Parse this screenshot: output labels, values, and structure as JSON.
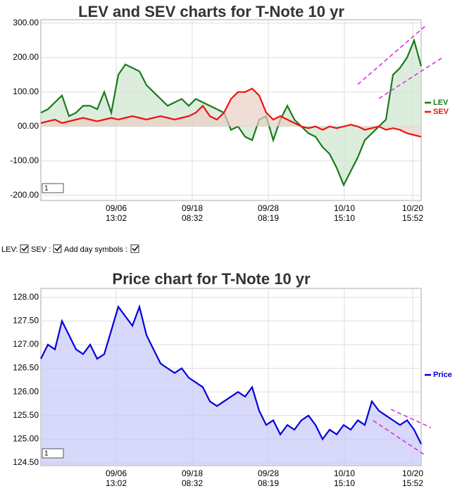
{
  "chart_data": [
    {
      "type": "area",
      "title": "LEV and SEV charts for T-Note 10 yr",
      "x": [
        0,
        1,
        2,
        3,
        4,
        5,
        6,
        7,
        8,
        9,
        10,
        11,
        12,
        13,
        14,
        15,
        16,
        17,
        18,
        19,
        20,
        21,
        22,
        23,
        24,
        25,
        26,
        27,
        28,
        29,
        30,
        31,
        32,
        33,
        34,
        35,
        36,
        37,
        38,
        39,
        40,
        41,
        42,
        43,
        44,
        45,
        46,
        47,
        48,
        49,
        50,
        51,
        52,
        53,
        54
      ],
      "series": [
        {
          "name": "LEV",
          "color": "#1a7a1a",
          "fill": "#cfe6cf",
          "values": [
            40,
            50,
            70,
            90,
            30,
            40,
            60,
            60,
            50,
            100,
            40,
            150,
            180,
            170,
            160,
            120,
            100,
            80,
            60,
            70,
            80,
            60,
            80,
            70,
            60,
            50,
            40,
            -10,
            0,
            -30,
            -40,
            20,
            30,
            -40,
            20,
            60,
            20,
            0,
            -20,
            -30,
            -60,
            -80,
            -120,
            -170,
            -130,
            -90,
            -40,
            -20,
            0,
            20,
            150,
            170,
            200,
            250,
            175
          ]
        },
        {
          "name": "SEV",
          "color": "#ee1111",
          "fill": "#e8cfc4",
          "values": [
            10,
            15,
            20,
            10,
            15,
            20,
            25,
            20,
            15,
            20,
            25,
            20,
            25,
            30,
            25,
            20,
            25,
            30,
            25,
            20,
            25,
            30,
            40,
            60,
            30,
            20,
            40,
            80,
            100,
            100,
            110,
            90,
            40,
            20,
            30,
            20,
            10,
            0,
            -5,
            0,
            -10,
            0,
            -5,
            0,
            5,
            0,
            -10,
            -5,
            0,
            -10,
            -5,
            -10,
            -20,
            -25,
            -30
          ]
        }
      ],
      "xlim": [
        0,
        54
      ],
      "xticks": [
        {
          "value": 10.7,
          "label": "09/06 13:02"
        },
        {
          "value": 21.5,
          "label": "09/18 08:32"
        },
        {
          "value": 32.3,
          "label": "09/28 08:19"
        },
        {
          "value": 43.1,
          "label": "10/10 15:10"
        },
        {
          "value": 52.8,
          "label": "10/20 15:52"
        }
      ],
      "ylim": [
        -215,
        310
      ],
      "yticks": [
        {
          "value": -200,
          "label": "-200.00"
        },
        {
          "value": -100,
          "label": "-100.00"
        },
        {
          "value": 0,
          "label": "00.00"
        },
        {
          "value": 100,
          "label": "100.00"
        },
        {
          "value": 200,
          "label": "200.00"
        },
        {
          "value": 300,
          "label": "300.00"
        }
      ],
      "grid": true,
      "zoom": "1"
    },
    {
      "type": "area",
      "title": "Price chart for T-Note 10 yr",
      "x": [
        0,
        1,
        2,
        3,
        4,
        5,
        6,
        7,
        8,
        9,
        10,
        11,
        12,
        13,
        14,
        15,
        16,
        17,
        18,
        19,
        20,
        21,
        22,
        23,
        24,
        25,
        26,
        27,
        28,
        29,
        30,
        31,
        32,
        33,
        34,
        35,
        36,
        37,
        38,
        39,
        40,
        41,
        42,
        43,
        44,
        45,
        46,
        47,
        48,
        49,
        50,
        51,
        52,
        53,
        54
      ],
      "series": [
        {
          "name": "Price",
          "color": "#0000dd",
          "fill": "#c8c8f8",
          "values": [
            126.7,
            127.0,
            126.9,
            127.5,
            127.2,
            126.9,
            126.8,
            127.0,
            126.7,
            126.8,
            127.3,
            127.8,
            127.6,
            127.4,
            127.8,
            127.2,
            126.9,
            126.6,
            126.5,
            126.4,
            126.5,
            126.3,
            126.2,
            126.1,
            125.8,
            125.7,
            125.8,
            125.9,
            126.0,
            125.9,
            126.1,
            125.6,
            125.3,
            125.4,
            125.1,
            125.3,
            125.2,
            125.4,
            125.5,
            125.3,
            125.0,
            125.2,
            125.1,
            125.3,
            125.2,
            125.4,
            125.3,
            125.8,
            125.6,
            125.5,
            125.4,
            125.3,
            125.4,
            125.2,
            124.9
          ]
        }
      ],
      "xlim": [
        0,
        54
      ],
      "xticks": [
        {
          "value": 10.7,
          "label": "09/06 13:02"
        },
        {
          "value": 21.5,
          "label": "09/18 08:32"
        },
        {
          "value": 32.3,
          "label": "09/28 08:19"
        },
        {
          "value": 43.1,
          "label": "10/10 15:10"
        },
        {
          "value": 52.8,
          "label": "10/20 15:52"
        }
      ],
      "ylim": [
        124.44,
        128.19
      ],
      "yticks": [
        {
          "value": 124.5,
          "label": "124.50"
        },
        {
          "value": 125,
          "label": "125.00"
        },
        {
          "value": 125.5,
          "label": "125.50"
        },
        {
          "value": 126,
          "label": "126.00"
        },
        {
          "value": 126.5,
          "label": "126.50"
        },
        {
          "value": 127,
          "label": "127.00"
        },
        {
          "value": 127.5,
          "label": "127.50"
        },
        {
          "value": 128,
          "label": "128.00"
        }
      ],
      "grid": true,
      "zoom": "1"
    }
  ],
  "controls": {
    "labels": [
      "LEV:",
      "SEV :",
      "Add day symbols :"
    ]
  }
}
